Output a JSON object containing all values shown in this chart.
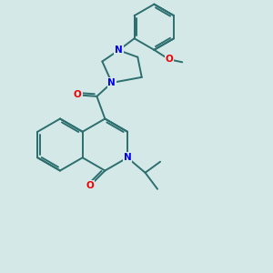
{
  "bg_color": "#d4e8e8",
  "bond_color": "#2d6e6e",
  "N_color": "#0000ee",
  "O_color": "#ee0000",
  "bond_lw": 1.4,
  "font_size": 7.5
}
